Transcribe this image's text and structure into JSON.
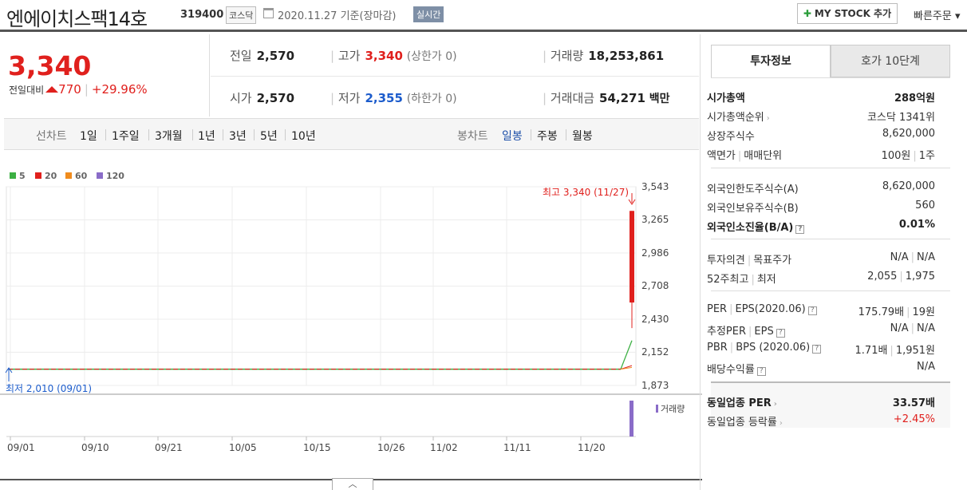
{
  "header": {
    "title": "엔에이치스팩14호",
    "code": "319400",
    "market": "코스닥",
    "date": "2020.11.27 기준(장마감)",
    "realtime": "실시간",
    "mystock_label": "MY STOCK 추가",
    "quick_order": "빠른주문"
  },
  "price": {
    "current": "3,340",
    "diff_label": "전일대비",
    "diff": "770",
    "rate": "+29.96%"
  },
  "stats": {
    "prev_close_label": "전일",
    "prev_close": "2,570",
    "high_label": "고가",
    "high": "3,340",
    "high_limit": "(상한가 0)",
    "volume_label": "거래량",
    "volume": "18,253,861",
    "open_label": "시가",
    "open": "2,570",
    "low_label": "저가",
    "low": "2,355",
    "low_limit": "(하한가 0)",
    "amount_label": "거래대금",
    "amount": "54,271",
    "amount_unit": "백만"
  },
  "chart_tabs": {
    "line_label": "선차트",
    "periods": [
      "1일",
      "1주일",
      "3개월",
      "1년",
      "3년",
      "5년",
      "10년"
    ],
    "candle_label": "봉차트",
    "candles": [
      "일봉",
      "주봉",
      "월봉"
    ],
    "selected_candle": "일봉"
  },
  "chart_data": {
    "type": "candlestick",
    "legend": [
      {
        "name": "5",
        "color": "#3cb043"
      },
      {
        "name": "20",
        "color": "#e0201d"
      },
      {
        "name": "60",
        "color": "#f08c1e"
      },
      {
        "name": "120",
        "color": "#8a6cc8"
      }
    ],
    "y_ticks": [
      "3,543",
      "3,265",
      "2,986",
      "2,708",
      "2,430",
      "2,152",
      "1,873"
    ],
    "ylim": [
      1873,
      3543
    ],
    "x_ticks": [
      "09/01",
      "09/10",
      "09/21",
      "10/05",
      "10/15",
      "10/26",
      "11/02",
      "11/11",
      "11/20"
    ],
    "high_annotation": "최고 3,340 (11/27)",
    "low_annotation": "최저 2,010 (09/01)",
    "flat_price": 2010,
    "last_candle": {
      "date": "11/27",
      "open": 2570,
      "high": 3340,
      "low": 2355,
      "close": 3340
    },
    "ma5_end": 2250,
    "volume_label": "거래량"
  },
  "right_panel": {
    "tab_active": "투자정보",
    "tab_other": "호가 10단계",
    "market_cap_label": "시가총액",
    "market_cap": "288억원",
    "rank_label": "시가총액순위",
    "rank": "코스닥 1341위",
    "shares_label": "상장주식수",
    "shares": "8,620,000",
    "face_label_1": "액면가",
    "face_label_2": "매매단위",
    "face_1": "100원",
    "face_2": "1주",
    "foreign_limit_label": "외국인한도주식수(A)",
    "foreign_limit": "8,620,000",
    "foreign_hold_label": "외국인보유주식수(B)",
    "foreign_hold": "560",
    "foreign_rate_label": "외국인소진율(B/A)",
    "foreign_rate": "0.01%",
    "opinion_label_1": "투자의견",
    "opinion_label_2": "목표주가",
    "opinion_1": "N/A",
    "opinion_2": "N/A",
    "w52_label_1": "52주최고",
    "w52_label_2": "최저",
    "w52_high": "2,055",
    "w52_low": "1,975",
    "per_label_1": "PER",
    "per_label_2": "EPS(2020.06)",
    "per": "175.79배",
    "eps": "19원",
    "est_per_label_1": "추정PER",
    "est_per_label_2": "EPS",
    "est_per": "N/A",
    "est_eps": "N/A",
    "pbr_label_1": "PBR",
    "pbr_label_2": "BPS (2020.06)",
    "pbr": "1.71배",
    "bps": "1,951원",
    "dividend_label": "배당수익률",
    "dividend": "N/A",
    "sector_per_label": "동일업종 PER",
    "sector_per": "33.57배",
    "sector_rate_label": "동일업종 등락률",
    "sector_rate": "+2.45%"
  }
}
